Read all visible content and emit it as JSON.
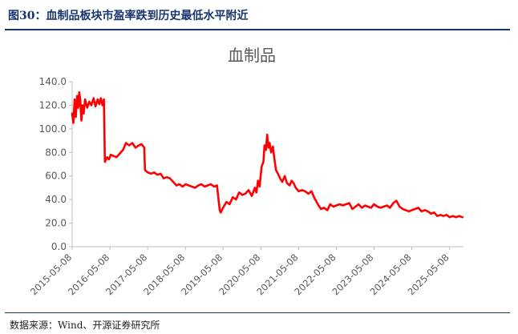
{
  "figure": {
    "title": "图30：血制品板块市盈率跌到历史最低水平附近",
    "source": "数据来源：Wind、开源证券研究所"
  },
  "chart_data": {
    "type": "line",
    "title": "血制品",
    "xlabel": "",
    "ylabel": "",
    "ylim": [
      0,
      140
    ],
    "yticks": [
      "0.0",
      "20.0",
      "40.0",
      "60.0",
      "80.0",
      "100.0",
      "120.0",
      "140.0"
    ],
    "xticks": [
      "2015-05-08",
      "2016-05-08",
      "2017-05-08",
      "2018-05-08",
      "2019-05-08",
      "2020-05-08",
      "2021-05-08",
      "2022-05-08",
      "2023-05-08",
      "2024-05-08",
      "2025-05-08"
    ],
    "grid": false,
    "legend": "none",
    "series": [
      {
        "color": "#ff0000",
        "x": [
          "2015-05-08",
          "2015-05-20",
          "2015-06-01",
          "2015-06-12",
          "2015-06-25",
          "2015-07-06",
          "2015-07-15",
          "2015-07-25",
          "2015-08-05",
          "2015-08-15",
          "2015-08-28",
          "2015-09-10",
          "2015-10-01",
          "2015-10-20",
          "2015-11-10",
          "2015-12-01",
          "2015-12-20",
          "2016-01-10",
          "2016-01-25",
          "2016-02-10",
          "2016-02-25",
          "2016-03-10",
          "2016-03-20",
          "2016-04-10",
          "2016-04-28",
          "2016-05-15",
          "2016-06-10",
          "2016-07-10",
          "2016-08-10",
          "2016-09-10",
          "2016-10-10",
          "2016-11-10",
          "2016-12-10",
          "2017-01-10",
          "2017-02-10",
          "2017-03-10",
          "2017-04-05",
          "2017-04-12",
          "2017-05-08",
          "2017-06-10",
          "2017-07-10",
          "2017-08-10",
          "2017-09-10",
          "2017-10-10",
          "2017-11-10",
          "2017-12-10",
          "2018-01-10",
          "2018-02-10",
          "2018-03-10",
          "2018-04-10",
          "2018-05-10",
          "2018-06-10",
          "2018-07-10",
          "2018-08-10",
          "2018-09-10",
          "2018-10-10",
          "2018-11-10",
          "2018-12-10",
          "2019-01-10",
          "2019-02-10",
          "2019-03-10",
          "2019-04-05",
          "2019-04-15",
          "2019-05-01",
          "2019-05-20",
          "2019-06-10",
          "2019-07-10",
          "2019-08-10",
          "2019-09-10",
          "2019-10-10",
          "2019-11-10",
          "2019-12-10",
          "2020-01-10",
          "2020-02-10",
          "2020-03-10",
          "2020-03-25",
          "2020-04-10",
          "2020-04-25",
          "2020-05-15",
          "2020-06-01",
          "2020-06-12",
          "2020-06-25",
          "2020-07-08",
          "2020-07-20",
          "2020-08-01",
          "2020-08-15",
          "2020-09-01",
          "2020-09-15",
          "2020-10-01",
          "2020-10-20",
          "2020-11-10",
          "2020-12-01",
          "2020-12-25",
          "2021-01-15",
          "2021-02-10",
          "2021-03-01",
          "2021-03-20",
          "2021-04-10",
          "2021-05-08",
          "2021-06-10",
          "2021-07-10",
          "2021-08-10",
          "2021-09-10",
          "2021-10-10",
          "2021-11-10",
          "2021-12-10",
          "2022-01-10",
          "2022-02-10",
          "2022-03-10",
          "2022-04-10",
          "2022-05-08",
          "2022-06-10",
          "2022-07-10",
          "2022-08-10",
          "2022-09-10",
          "2022-10-10",
          "2022-11-10",
          "2022-12-10",
          "2023-01-10",
          "2023-02-10",
          "2023-03-10",
          "2023-04-10",
          "2023-05-08",
          "2023-06-10",
          "2023-07-10",
          "2023-08-10",
          "2023-09-10",
          "2023-10-10",
          "2023-11-10",
          "2023-12-10",
          "2024-01-10",
          "2024-02-10",
          "2024-03-10",
          "2024-04-10",
          "2024-05-08",
          "2024-06-10",
          "2024-07-10",
          "2024-08-10",
          "2024-09-10",
          "2024-10-10",
          "2024-11-10",
          "2024-12-10",
          "2025-01-10",
          "2025-02-10",
          "2025-03-10",
          "2025-04-10",
          "2025-05-08",
          "2025-06-10",
          "2025-07-10",
          "2025-08-10",
          "2025-09-10"
        ],
        "y": [
          113,
          105,
          125,
          110,
          128,
          118,
          131,
          125,
          107,
          120,
          113,
          125,
          118,
          123,
          120,
          126,
          119,
          125,
          121,
          126,
          120,
          125,
          72,
          76,
          74,
          78,
          77,
          76,
          79,
          82,
          88,
          86,
          88,
          84,
          86,
          87,
          84,
          65,
          63,
          62,
          63,
          61,
          62,
          58,
          59,
          58,
          55,
          52,
          53,
          51,
          53,
          52,
          51,
          50,
          52,
          53,
          51,
          52,
          53,
          51,
          52,
          31,
          29,
          32,
          35,
          38,
          36,
          42,
          40,
          46,
          44,
          45,
          48,
          43,
          50,
          46,
          56,
          51,
          68,
          72,
          86,
          82,
          95,
          84,
          88,
          80,
          85,
          75,
          65,
          62,
          58,
          55,
          60,
          54,
          52,
          56,
          54,
          50,
          47,
          48,
          47,
          45,
          47,
          41,
          36,
          32,
          33,
          31,
          36,
          34,
          35,
          36,
          35,
          36,
          37,
          32,
          34,
          36,
          33,
          35,
          34,
          33,
          36,
          34,
          33,
          34,
          35,
          33,
          37,
          39,
          34,
          32,
          31,
          30,
          31,
          32,
          33,
          30,
          31,
          30,
          28,
          29,
          26,
          27,
          26,
          27,
          25,
          26,
          25,
          26,
          25
        ]
      }
    ]
  }
}
